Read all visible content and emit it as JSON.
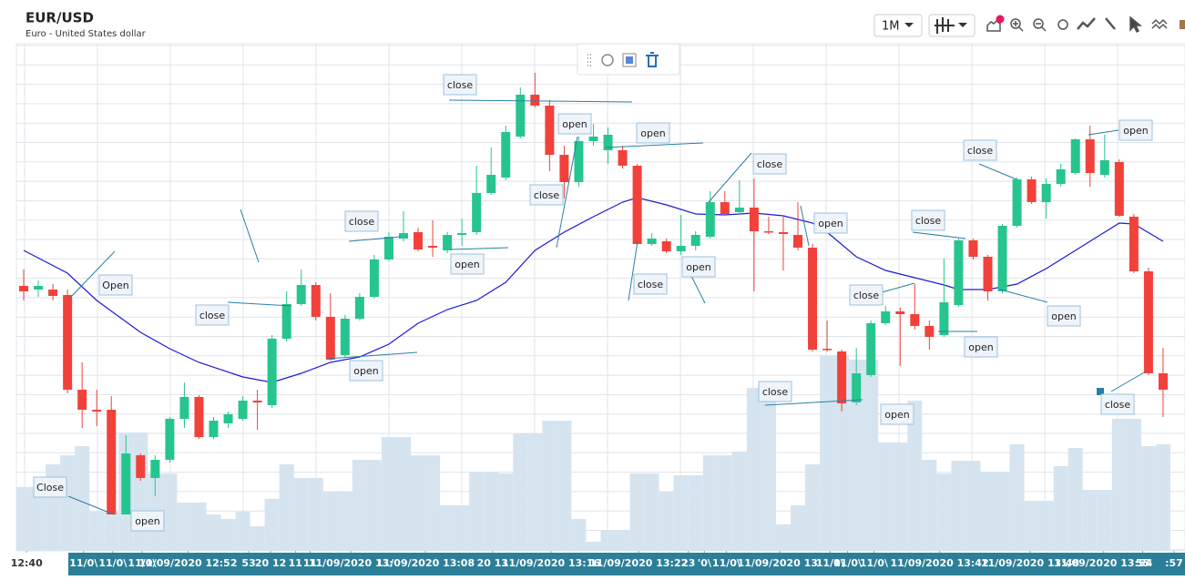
{
  "chart_data": {
    "type": "candlestick",
    "title": "EUR/USD",
    "subtitle": "Euro - United States dollar",
    "timeframe": "1M",
    "xlim": [
      -0.5,
      79.5
    ],
    "ylim": [
      0,
      557
    ],
    "up_color": "#27c58e",
    "down_color": "#f2413b",
    "open": [
      291,
      287,
      287,
      281,
      177,
      155,
      155,
      40,
      105,
      80,
      100,
      145,
      169,
      125,
      140,
      145,
      165,
      160,
      233,
      271,
      292,
      257,
      215,
      255,
      279,
      320,
      343,
      350,
      335,
      330,
      347,
      350,
      393,
      410,
      455,
      501,
      489,
      435,
      405,
      450,
      440,
      440,
      423,
      337,
      340,
      329,
      335,
      345,
      383,
      372,
      377,
      351,
      350,
      347,
      333,
      222,
      219,
      163,
      193,
      250,
      263,
      260,
      247,
      237,
      270,
      341,
      323,
      285,
      357,
      408,
      383,
      403,
      415,
      452,
      413,
      427,
      367,
      307,
      195
    ],
    "high": [
      309,
      297,
      293,
      287,
      207,
      177,
      170,
      127,
      107,
      105,
      147,
      185,
      171,
      147,
      153,
      170,
      177,
      237,
      285,
      309,
      295,
      283,
      259,
      283,
      325,
      350,
      373,
      355,
      363,
      350,
      365,
      423,
      443,
      467,
      509,
      525,
      495,
      445,
      455,
      469,
      465,
      445,
      425,
      349,
      343,
      369,
      351,
      395,
      395,
      407,
      409,
      367,
      367,
      383,
      337,
      253,
      221,
      223,
      253,
      269,
      267,
      293,
      253,
      321,
      343,
      343,
      325,
      359,
      410,
      411,
      409,
      425,
      453,
      467,
      457,
      430,
      370,
      311,
      223
    ],
    "low": [
      275,
      279,
      275,
      173,
      135,
      137,
      40,
      40,
      77,
      60,
      97,
      135,
      123,
      123,
      135,
      143,
      133,
      157,
      230,
      269,
      253,
      209,
      213,
      253,
      277,
      318,
      340,
      329,
      323,
      327,
      335,
      347,
      391,
      407,
      453,
      487,
      417,
      387,
      400,
      445,
      425,
      420,
      337,
      335,
      327,
      325,
      330,
      343,
      369,
      369,
      285,
      348,
      308,
      330,
      219,
      219,
      153,
      160,
      191,
      248,
      203,
      243,
      221,
      235,
      268,
      320,
      275,
      283,
      355,
      381,
      365,
      400,
      413,
      400,
      410,
      367,
      305,
      193,
      147
    ],
    "close": [
      285,
      291,
      280,
      177,
      155,
      153,
      40,
      107,
      80,
      100,
      145,
      169,
      125,
      143,
      150,
      165,
      163,
      233,
      271,
      292,
      257,
      210,
      255,
      279,
      320,
      345,
      349,
      331,
      333,
      347,
      349,
      393,
      413,
      460,
      501,
      489,
      435,
      405,
      450,
      455,
      457,
      423,
      337,
      343,
      329,
      335,
      347,
      383,
      370,
      377,
      351,
      350,
      348,
      333,
      221,
      221,
      162,
      195,
      250,
      263,
      260,
      247,
      235,
      273,
      341,
      323,
      285,
      357,
      408,
      383,
      403,
      419,
      452,
      415,
      429,
      368,
      307,
      195,
      177
    ],
    "volume": {
      "color": "#d6e4ef",
      "ylim": [
        0,
        557
      ],
      "values": [
        70,
        70,
        95,
        105,
        115,
        43,
        43,
        130,
        130,
        85,
        85,
        53,
        53,
        40,
        35,
        43,
        27,
        57,
        95,
        80,
        80,
        65,
        65,
        100,
        100,
        125,
        125,
        105,
        105,
        50,
        50,
        87,
        87,
        85,
        129,
        129,
        143,
        143,
        35,
        10,
        23,
        23,
        85,
        85,
        65,
        83,
        83,
        105,
        105,
        109,
        179,
        179,
        29,
        50,
        95,
        215,
        215,
        210,
        210,
        119,
        119,
        165,
        100,
        85,
        99,
        99,
        87,
        87,
        117,
        55,
        55,
        93,
        113,
        67,
        67,
        145,
        145,
        115,
        117
      ]
    },
    "ma": {
      "color": "#1a1ad6",
      "x": [
        0,
        3,
        5,
        8,
        10,
        12,
        15,
        17,
        19,
        21,
        23,
        25,
        27,
        29,
        31,
        33,
        35,
        37,
        39,
        41,
        42,
        44,
        46,
        48,
        50,
        52,
        54,
        55,
        57,
        59,
        61,
        63,
        64,
        66,
        68,
        70,
        72,
        74,
        75,
        76,
        78
      ],
      "values": [
        330,
        305,
        275,
        240,
        222,
        207,
        191,
        185,
        195,
        207,
        213,
        227,
        250,
        265,
        275,
        295,
        330,
        350,
        367,
        383,
        388,
        380,
        370,
        369,
        371,
        368,
        360,
        350,
        323,
        308,
        300,
        292,
        287,
        287,
        293,
        310,
        330,
        350,
        360,
        359,
        340
      ]
    },
    "xticks": [
      {
        "value": 0.2,
        "label": "12:40"
      },
      {
        "value": 4.1,
        "label": "11/0\\"
      },
      {
        "value": 6.1,
        "label": "11/0\\"
      },
      {
        "value": 8.1,
        "label": "11/0\\"
      },
      {
        "value": 11.25,
        "label": "11/09/2020 12:52"
      },
      {
        "value": 15.4,
        "label": "53"
      },
      {
        "value": 16.9,
        "label": "20 12"
      },
      {
        "value": 18.6,
        "label": "11"
      },
      {
        "value": 19.6,
        "label": "11"
      },
      {
        "value": 22.4,
        "label": "11/09/2020 13:"
      },
      {
        "value": 27.5,
        "label": "11/09/2020 13:08"
      },
      {
        "value": 32.1,
        "label": "20 13"
      },
      {
        "value": 36.1,
        "label": "11/09/2020 13:16"
      },
      {
        "value": 42.1,
        "label": "11/09/2020 13:22"
      },
      {
        "value": 45.5,
        "label": "23"
      },
      {
        "value": 46.6,
        "label": "'0\\"
      },
      {
        "value": 48.1,
        "label": "11/0\\"
      },
      {
        "value": 51.75,
        "label": "11/09/2020 13:"
      },
      {
        "value": 55.2,
        "label": "11/0\\"
      },
      {
        "value": 56.4,
        "label": "11/0\\"
      },
      {
        "value": 58.2,
        "label": "11/0\\"
      },
      {
        "value": 62.7,
        "label": "11/09/2020 13:42"
      },
      {
        "value": 68.9,
        "label": "11/09/2020 13:48"
      },
      {
        "value": 73.9,
        "label": "11/09/2020 13:54"
      },
      {
        "value": 76.6,
        "label": "55"
      },
      {
        "value": 78.75,
        "label": ":57"
      }
    ],
    "annotations": [
      "Open",
      "Close",
      "open",
      "close",
      "open",
      "close",
      "open",
      "close",
      "open",
      "close",
      "open",
      "close",
      "open",
      "close",
      "open",
      "close",
      "open",
      "close",
      "close",
      "open",
      "close",
      "open",
      "open",
      "close"
    ]
  }
}
